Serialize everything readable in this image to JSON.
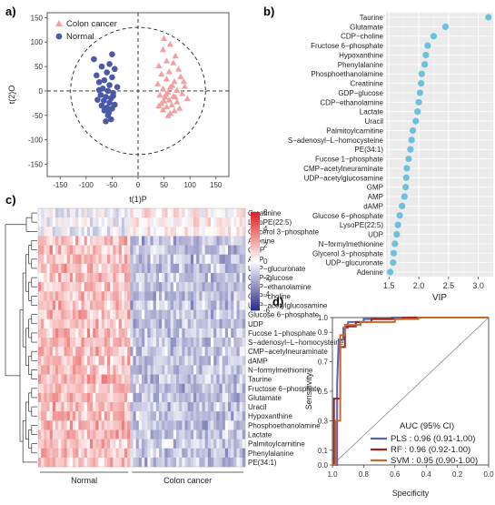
{
  "panels": {
    "a": "a)",
    "b": "b)",
    "c": "c)",
    "d": "d)"
  },
  "chart_data": [
    {
      "panel": "a",
      "type": "scatter",
      "xlabel": "t(1)P",
      "ylabel": "t(2)O",
      "xlim": [
        -175,
        175
      ],
      "ylim": [
        -175,
        160
      ],
      "xticks": [
        -150,
        -100,
        -50,
        0,
        50,
        100,
        150
      ],
      "yticks": [
        -150,
        -100,
        -50,
        0,
        50,
        100,
        150
      ],
      "ellipse": {
        "cx": 0,
        "cy": 0,
        "rx": 130,
        "ry": 130,
        "style": "dashed"
      },
      "legend_position": "top-left",
      "series": [
        {
          "name": "Colon cancer",
          "marker": "triangle",
          "color": "#f4a0a0",
          "points": [
            [
              50,
              108
            ],
            [
              62,
              96
            ],
            [
              48,
              85
            ],
            [
              72,
              72
            ],
            [
              55,
              62
            ],
            [
              68,
              58
            ],
            [
              40,
              52
            ],
            [
              78,
              45
            ],
            [
              60,
              40
            ],
            [
              45,
              35
            ],
            [
              82,
              30
            ],
            [
              55,
              25
            ],
            [
              70,
              20
            ],
            [
              38,
              15
            ],
            [
              90,
              10
            ],
            [
              62,
              8
            ],
            [
              48,
              5
            ],
            [
              75,
              2
            ],
            [
              58,
              -2
            ],
            [
              85,
              -5
            ],
            [
              42,
              -8
            ],
            [
              68,
              -10
            ],
            [
              52,
              -12
            ],
            [
              95,
              -15
            ],
            [
              60,
              -18
            ],
            [
              75,
              -22
            ],
            [
              45,
              -25
            ],
            [
              65,
              -28
            ],
            [
              55,
              -32
            ],
            [
              80,
              -35
            ],
            [
              48,
              -38
            ],
            [
              70,
              -40
            ],
            [
              62,
              -45
            ],
            [
              58,
              -50
            ],
            [
              72,
              -12
            ],
            [
              50,
              -20
            ],
            [
              88,
              20
            ],
            [
              40,
              -30
            ],
            [
              66,
              12
            ],
            [
              54,
              -6
            ]
          ]
        },
        {
          "name": "Normal",
          "marker": "circle",
          "color": "#4a5aa8",
          "points": [
            [
              -50,
              75
            ],
            [
              -85,
              65
            ],
            [
              -55,
              55
            ],
            [
              -70,
              50
            ],
            [
              -45,
              45
            ],
            [
              -60,
              38
            ],
            [
              -80,
              32
            ],
            [
              -50,
              28
            ],
            [
              -65,
              22
            ],
            [
              -75,
              18
            ],
            [
              -55,
              12
            ],
            [
              -40,
              8
            ],
            [
              -68,
              5
            ],
            [
              -58,
              0
            ],
            [
              -48,
              -4
            ],
            [
              -72,
              -8
            ],
            [
              -62,
              -12
            ],
            [
              -52,
              -15
            ],
            [
              -78,
              -18
            ],
            [
              -66,
              -20
            ],
            [
              -55,
              -24
            ],
            [
              -45,
              -28
            ],
            [
              -70,
              -30
            ],
            [
              -60,
              -34
            ],
            [
              -50,
              -36
            ],
            [
              -65,
              -40
            ],
            [
              -58,
              -50
            ],
            [
              -52,
              -58
            ],
            [
              -62,
              -62
            ],
            [
              -48,
              -10
            ],
            [
              -75,
              2
            ],
            [
              -56,
              -44
            ]
          ]
        }
      ]
    },
    {
      "panel": "b",
      "type": "scatter",
      "orientation": "dot-plot",
      "xlabel": "VIP",
      "xlim": [
        1.45,
        3.25
      ],
      "xticks": [
        1.5,
        2.0,
        2.5,
        3.0
      ],
      "color": "#6ec0dc",
      "categories": [
        "Taurine",
        "Glutamate",
        "CDP−choline",
        "Fructose 6−phosphate",
        "Hypoxanthine",
        "Phenylalanine",
        "Phosphoethanolamine",
        "Creatinine",
        "GDP−glucose",
        "CDP−ethanolamine",
        "Lactate",
        "Uracil",
        "Palmitoylcarnitine",
        "S−adenosyl−L−homocysteine",
        "PE(34:1)",
        "Fucose 1−phosphate",
        "CMP−acetylneuraminate",
        "UDP−acetylglucosamine",
        "GMP",
        "AMP",
        "dAMP",
        "Glucose 6−phosphate",
        "LysoPE(22:5)",
        "UDP",
        "N−formylmethionine",
        "Glycerol 3−phosphate",
        "UDP−glucuronate",
        "Adenine"
      ],
      "values": [
        3.17,
        2.45,
        2.25,
        2.15,
        2.12,
        2.1,
        2.05,
        2.04,
        2.02,
        2.0,
        1.98,
        1.95,
        1.9,
        1.88,
        1.86,
        1.83,
        1.8,
        1.79,
        1.78,
        1.76,
        1.72,
        1.68,
        1.65,
        1.63,
        1.6,
        1.58,
        1.57,
        1.52
      ]
    },
    {
      "panel": "c",
      "type": "heatmap",
      "colorscale": {
        "min": -6,
        "max": 6,
        "low": "#2b2f8c",
        "mid": "#ffffff",
        "high": "#e02020",
        "ticks": [
          6,
          4,
          2,
          0,
          -2,
          -4,
          -6
        ]
      },
      "rows": [
        "Creatinine",
        "LysoPE(22:5)",
        "Glycerol 3−phosphate",
        "Adenine",
        "GMP",
        "AMP",
        "UDP−glucuronate",
        "GDP−glucose",
        "CDP−ethanolamine",
        "CDP−choline",
        "UDP−acetylglucosamine",
        "Glucose 6−phosphate",
        "UDP",
        "Fucose 1−phosphate",
        "S−adenosyl−L−homocysteine",
        "CMP−acetylneuraminate",
        "dAMP",
        "N−formylmethionine",
        "Taurine",
        "Fructose 6−phosphate",
        "Glutamate",
        "Uracil",
        "Hypoxanthine",
        "Phosphoethanolamine",
        "Lactate",
        "Palmitoylcarnitine",
        "Phenylalanine",
        "PE(34:1)"
      ],
      "groups": [
        {
          "name": "Normal",
          "n": 32
        },
        {
          "name": "Colon cancer",
          "n": 40
        }
      ]
    },
    {
      "panel": "d",
      "type": "line",
      "xlabel": "Specificity",
      "ylabel": "Sensitivity",
      "xlim": [
        1.0,
        0.0
      ],
      "ylim": [
        0.0,
        1.0
      ],
      "xticks": [
        1.0,
        0.8,
        0.6,
        0.4,
        0.2,
        0.0
      ],
      "yticks": [
        0.0,
        0.1,
        0.3,
        0.5,
        0.7,
        0.9,
        1.0
      ],
      "legend_title": "AUC (95% CI)",
      "legend_position": "bottom-right",
      "series": [
        {
          "name": "PLS : 0.96 (0.91-1.00)",
          "color": "#5865b8",
          "points": [
            [
              1.0,
              0.0
            ],
            [
              0.97,
              0.0
            ],
            [
              0.97,
              0.55
            ],
            [
              0.96,
              0.85
            ],
            [
              0.93,
              0.85
            ],
            [
              0.93,
              0.93
            ],
            [
              0.9,
              0.93
            ],
            [
              0.9,
              0.97
            ],
            [
              0.8,
              0.97
            ],
            [
              0.8,
              0.99
            ],
            [
              0.62,
              0.99
            ],
            [
              0.62,
              1.0
            ],
            [
              0.0,
              1.0
            ]
          ]
        },
        {
          "name": "RF : 0.96 (0.92-1.00)",
          "color": "#9b2525",
          "points": [
            [
              1.0,
              0.0
            ],
            [
              0.99,
              0.0
            ],
            [
              0.99,
              0.45
            ],
            [
              0.95,
              0.45
            ],
            [
              0.95,
              0.8
            ],
            [
              0.92,
              0.8
            ],
            [
              0.92,
              0.94
            ],
            [
              0.85,
              0.94
            ],
            [
              0.85,
              0.97
            ],
            [
              0.75,
              0.97
            ],
            [
              0.75,
              0.99
            ],
            [
              0.55,
              0.99
            ],
            [
              0.55,
              1.0
            ],
            [
              0.0,
              1.0
            ]
          ]
        },
        {
          "name": "SVM : 0.95 (0.90-1.00)",
          "color": "#c86a2a",
          "points": [
            [
              1.0,
              0.0
            ],
            [
              0.98,
              0.0
            ],
            [
              0.98,
              0.3
            ],
            [
              0.95,
              0.3
            ],
            [
              0.95,
              0.88
            ],
            [
              0.92,
              0.88
            ],
            [
              0.92,
              0.95
            ],
            [
              0.82,
              0.95
            ],
            [
              0.82,
              0.97
            ],
            [
              0.6,
              0.97
            ],
            [
              0.6,
              0.99
            ],
            [
              0.45,
              0.99
            ],
            [
              0.45,
              1.0
            ],
            [
              0.0,
              1.0
            ]
          ]
        }
      ]
    }
  ]
}
